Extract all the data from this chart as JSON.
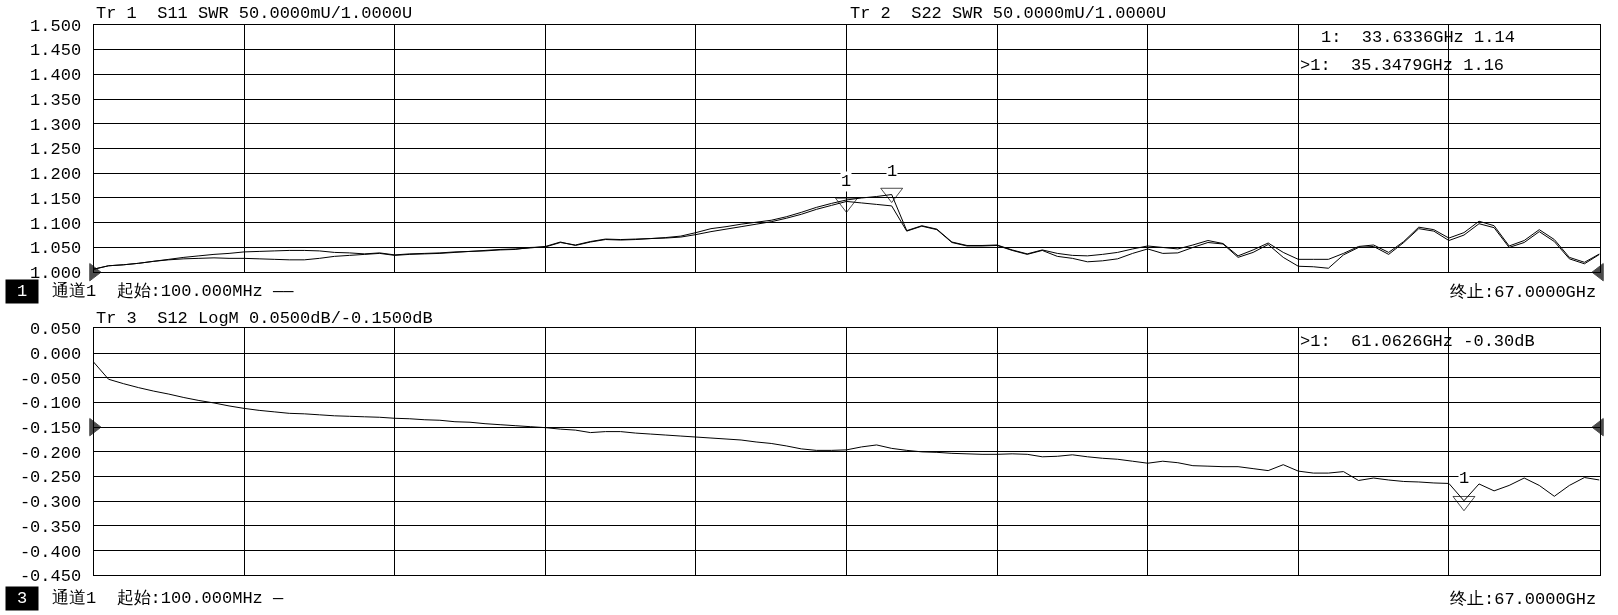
{
  "chart_data": [
    {
      "type": "line",
      "categories": [
        null,
        null,
        null,
        null,
        null,
        null,
        null,
        null,
        null,
        null,
        null,
        null,
        null,
        null,
        null,
        null,
        null,
        null,
        null,
        null,
        null,
        null,
        null,
        null,
        null,
        null,
        null,
        null,
        null,
        null,
        null,
        null,
        null,
        null,
        null,
        null,
        null,
        null,
        null,
        null,
        null,
        null,
        null,
        null,
        null,
        null,
        null,
        null,
        null,
        null,
        null,
        null,
        null,
        null,
        null,
        null,
        null,
        null,
        null,
        null,
        null,
        null,
        null,
        null,
        null,
        null,
        null,
        null,
        null,
        null,
        null,
        null,
        null,
        null,
        null,
        null,
        null,
        null,
        null,
        null,
        null,
        null,
        null,
        null,
        null,
        null,
        null,
        null,
        null,
        null,
        null,
        null,
        null,
        null,
        null,
        null,
        null,
        null,
        null,
        null,
        null
      ],
      "ylim": [
        1.0,
        1.5
      ],
      "yticks": [
        {
          "value": 1.0,
          "label": "1.000"
        },
        {
          "value": 1.05,
          "label": "1.050"
        },
        {
          "value": 1.1,
          "label": "1.100"
        },
        {
          "value": 1.15,
          "label": "1.150"
        },
        {
          "value": 1.2,
          "label": "1.200"
        },
        {
          "value": 1.25,
          "label": "1.250"
        },
        {
          "value": 1.3,
          "label": "1.300"
        },
        {
          "value": 1.35,
          "label": "1.350"
        },
        {
          "value": 1.4,
          "label": "1.400"
        },
        {
          "value": 1.45,
          "label": "1.450"
        },
        {
          "value": 1.5,
          "label": "1.500"
        }
      ],
      "grid": true,
      "tick_labels": "y",
      "series": [
        {
          "color": "#000000",
          "values": [
            1.006,
            1.013,
            1.015,
            1.018,
            1.022,
            1.026,
            1.03,
            1.033,
            1.036,
            1.038,
            1.041,
            1.042,
            1.043,
            1.044,
            1.044,
            1.043,
            1.04,
            1.039,
            1.037,
            1.039,
            1.035,
            1.037,
            1.038,
            1.039,
            1.041,
            1.042,
            1.043,
            1.045,
            1.046,
            1.05,
            1.051,
            1.06,
            1.055,
            1.062,
            1.067,
            1.066,
            1.067,
            1.068,
            1.069,
            1.071,
            1.076,
            1.082,
            1.087,
            1.092,
            1.097,
            1.102,
            1.109,
            1.117,
            1.127,
            1.135,
            1.143,
            1.14,
            1.137,
            1.134,
            1.083,
            1.093,
            1.086,
            1.06,
            1.053,
            1.053,
            1.054,
            1.044,
            1.036,
            1.044,
            1.032,
            1.028,
            1.021,
            1.023,
            1.027,
            1.038,
            1.047,
            1.038,
            1.039,
            1.05,
            1.06,
            1.057,
            1.03,
            1.04,
            1.056,
            1.03,
            1.012,
            1.011,
            1.008,
            1.035,
            1.05,
            1.052,
            1.036,
            1.06,
            1.088,
            1.083,
            1.064,
            1.075,
            1.098,
            1.09,
            1.05,
            1.06,
            1.082,
            1.062,
            1.027,
            1.017,
            1.036
          ]
        },
        {
          "color": "#000000",
          "values": [
            1.006,
            1.013,
            1.015,
            1.018,
            1.022,
            1.025,
            1.027,
            1.028,
            1.029,
            1.028,
            1.028,
            1.027,
            1.026,
            1.025,
            1.025,
            1.028,
            1.032,
            1.034,
            1.036,
            1.038,
            1.034,
            1.036,
            1.037,
            1.038,
            1.04,
            1.042,
            1.044,
            1.046,
            1.047,
            1.049,
            1.052,
            1.061,
            1.054,
            1.061,
            1.066,
            1.065,
            1.066,
            1.068,
            1.07,
            1.073,
            1.08,
            1.088,
            1.092,
            1.097,
            1.101,
            1.105,
            1.112,
            1.121,
            1.131,
            1.139,
            1.146,
            1.15,
            1.153,
            1.157,
            1.084,
            1.094,
            1.087,
            1.061,
            1.054,
            1.054,
            1.055,
            1.045,
            1.037,
            1.045,
            1.038,
            1.034,
            1.033,
            1.036,
            1.04,
            1.047,
            1.053,
            1.05,
            1.047,
            1.055,
            1.064,
            1.058,
            1.033,
            1.045,
            1.059,
            1.04,
            1.026,
            1.026,
            1.026,
            1.038,
            1.052,
            1.055,
            1.04,
            1.062,
            1.091,
            1.086,
            1.069,
            1.08,
            1.103,
            1.094,
            1.053,
            1.064,
            1.086,
            1.066,
            1.03,
            1.02,
            1.037
          ]
        },
        {
          "type": "scatter",
          "marker": "triangle",
          "color": "#000000",
          "values": [
            null,
            null,
            null,
            null,
            null,
            null,
            null,
            null,
            null,
            null,
            null,
            null,
            null,
            null,
            null,
            null,
            null,
            null,
            null,
            null,
            null,
            null,
            null,
            null,
            null,
            null,
            null,
            null,
            null,
            null,
            null,
            null,
            null,
            null,
            null,
            null,
            null,
            null,
            null,
            null,
            null,
            null,
            null,
            null,
            null,
            null,
            null,
            null,
            null,
            null,
            1.14,
            null,
            null,
            1.16,
            null,
            null,
            null,
            null,
            null,
            null,
            null,
            null,
            null,
            null,
            null,
            null,
            null,
            null,
            null,
            null,
            null,
            null,
            null,
            null,
            null,
            null,
            null,
            null,
            null,
            null,
            null,
            null,
            null,
            null,
            null,
            null,
            null,
            null,
            null,
            null,
            null,
            null,
            null,
            null,
            null,
            null,
            null,
            null,
            null,
            null,
            null
          ]
        },
        {
          "type": "scatter",
          "marker": "triangle",
          "color": "#000000",
          "values": [
            1.0,
            null,
            null,
            null,
            null,
            null,
            null,
            null,
            null,
            null,
            null,
            null,
            null,
            null,
            null,
            null,
            null,
            null,
            null,
            null,
            null,
            null,
            null,
            null,
            null,
            null,
            null,
            null,
            null,
            null,
            null,
            null,
            null,
            null,
            null,
            null,
            null,
            null,
            null,
            null,
            null,
            null,
            null,
            null,
            null,
            null,
            null,
            null,
            null,
            null,
            null,
            null,
            null,
            null,
            null,
            null,
            null,
            null,
            null,
            null,
            null,
            null,
            null,
            null,
            null,
            null,
            null,
            null,
            null,
            null,
            null,
            null,
            null,
            null,
            null,
            null,
            null,
            null,
            null,
            null,
            null,
            null,
            null,
            null,
            null,
            null,
            null,
            null,
            null,
            null,
            null,
            null,
            null,
            null,
            null,
            null,
            null,
            null,
            null,
            null,
            1.0
          ]
        }
      ],
      "annotations": [
        "Tr 1  S11 SWR 50.0000mU/1.0000U",
        "Tr 2  S22 SWR 50.0000mU/1.0000U",
        "1:  33.6336GHz 1.14",
        ">1:  35.3479GHz 1.16",
        "1",
        "通道1  起始:100.000MHz ——",
        "终止:67.0000GHz",
        "1",
        "1"
      ]
    },
    {
      "type": "line",
      "categories": [
        null,
        null,
        null,
        null,
        null,
        null,
        null,
        null,
        null,
        null,
        null,
        null,
        null,
        null,
        null,
        null,
        null,
        null,
        null,
        null,
        null,
        null,
        null,
        null,
        null,
        null,
        null,
        null,
        null,
        null,
        null,
        null,
        null,
        null,
        null,
        null,
        null,
        null,
        null,
        null,
        null,
        null,
        null,
        null,
        null,
        null,
        null,
        null,
        null,
        null,
        null,
        null,
        null,
        null,
        null,
        null,
        null,
        null,
        null,
        null,
        null,
        null,
        null,
        null,
        null,
        null,
        null,
        null,
        null,
        null,
        null,
        null,
        null,
        null,
        null,
        null,
        null,
        null,
        null,
        null,
        null,
        null,
        null,
        null,
        null,
        null,
        null,
        null,
        null,
        null,
        null,
        null,
        null,
        null,
        null,
        null,
        null,
        null,
        null,
        null,
        null
      ],
      "ylim": [
        -0.45,
        0.05
      ],
      "yticks": [
        {
          "value": -0.45,
          "label": "-0.450"
        },
        {
          "value": -0.4,
          "label": "-0.400"
        },
        {
          "value": -0.35,
          "label": "-0.350"
        },
        {
          "value": -0.3,
          "label": "-0.300"
        },
        {
          "value": -0.25,
          "label": "-0.250"
        },
        {
          "value": -0.2,
          "label": "-0.200"
        },
        {
          "value": -0.15,
          "label": "-0.150"
        },
        {
          "value": -0.1,
          "label": "-0.100"
        },
        {
          "value": -0.05,
          "label": "-0.050"
        },
        {
          "value": 0.0,
          "label": "0.000"
        },
        {
          "value": 0.05,
          "label": "0.050"
        }
      ],
      "grid": true,
      "tick_labels": "y",
      "series": [
        {
          "color": "#000000",
          "values": [
            -0.018,
            -0.053,
            -0.062,
            -0.07,
            -0.077,
            -0.083,
            -0.09,
            -0.096,
            -0.101,
            -0.107,
            -0.112,
            -0.116,
            -0.119,
            -0.122,
            -0.123,
            -0.125,
            -0.127,
            -0.128,
            -0.129,
            -0.13,
            -0.132,
            -0.133,
            -0.135,
            -0.136,
            -0.139,
            -0.14,
            -0.143,
            -0.145,
            -0.147,
            -0.149,
            -0.151,
            -0.154,
            -0.156,
            -0.161,
            -0.159,
            -0.159,
            -0.162,
            -0.164,
            -0.166,
            -0.168,
            -0.17,
            -0.172,
            -0.174,
            -0.176,
            -0.18,
            -0.183,
            -0.188,
            -0.194,
            -0.197,
            -0.197,
            -0.196,
            -0.19,
            -0.186,
            -0.193,
            -0.197,
            -0.2,
            -0.201,
            -0.203,
            -0.204,
            -0.205,
            -0.205,
            -0.204,
            -0.205,
            -0.21,
            -0.209,
            -0.206,
            -0.21,
            -0.213,
            -0.215,
            -0.219,
            -0.223,
            -0.219,
            -0.222,
            -0.228,
            -0.229,
            -0.23,
            -0.23,
            -0.234,
            -0.238,
            -0.226,
            -0.239,
            -0.243,
            -0.243,
            -0.24,
            -0.258,
            -0.253,
            -0.257,
            -0.26,
            -0.261,
            -0.263,
            -0.264,
            -0.299,
            -0.265,
            -0.279,
            -0.268,
            -0.253,
            -0.268,
            -0.29,
            -0.268,
            -0.252,
            -0.257
          ]
        },
        {
          "type": "scatter",
          "marker": "triangle",
          "color": "#000000",
          "values": [
            null,
            null,
            null,
            null,
            null,
            null,
            null,
            null,
            null,
            null,
            null,
            null,
            null,
            null,
            null,
            null,
            null,
            null,
            null,
            null,
            null,
            null,
            null,
            null,
            null,
            null,
            null,
            null,
            null,
            null,
            null,
            null,
            null,
            null,
            null,
            null,
            null,
            null,
            null,
            null,
            null,
            null,
            null,
            null,
            null,
            null,
            null,
            null,
            null,
            null,
            null,
            null,
            null,
            null,
            null,
            null,
            null,
            null,
            null,
            null,
            null,
            null,
            null,
            null,
            null,
            null,
            null,
            null,
            null,
            null,
            null,
            null,
            null,
            null,
            null,
            null,
            null,
            null,
            null,
            null,
            null,
            null,
            null,
            null,
            null,
            null,
            null,
            null,
            null,
            null,
            null,
            -0.3,
            null,
            null,
            null,
            null,
            null,
            null,
            null,
            null,
            null
          ]
        },
        {
          "type": "scatter",
          "marker": "triangle",
          "color": "#000000",
          "values": [
            -0.15,
            null,
            null,
            null,
            null,
            null,
            null,
            null,
            null,
            null,
            null,
            null,
            null,
            null,
            null,
            null,
            null,
            null,
            null,
            null,
            null,
            null,
            null,
            null,
            null,
            null,
            null,
            null,
            null,
            null,
            null,
            null,
            null,
            null,
            null,
            null,
            null,
            null,
            null,
            null,
            null,
            null,
            null,
            null,
            null,
            null,
            null,
            null,
            null,
            null,
            null,
            null,
            null,
            null,
            null,
            null,
            null,
            null,
            null,
            null,
            null,
            null,
            null,
            null,
            null,
            null,
            null,
            null,
            null,
            null,
            null,
            null,
            null,
            null,
            null,
            null,
            null,
            null,
            null,
            null,
            null,
            null,
            null,
            null,
            null,
            null,
            null,
            null,
            null,
            null,
            null,
            null,
            null,
            null,
            null,
            null,
            null,
            null,
            null,
            null,
            -0.15
          ]
        }
      ],
      "annotations": [
        "Tr 3  S12 LogM 0.0500dB/-0.1500dB",
        ">1:  61.0626GHz -0.30dB",
        "3",
        "通道1  起始:100.000MHz —",
        "终止:67.0000GHz",
        "1"
      ]
    }
  ]
}
